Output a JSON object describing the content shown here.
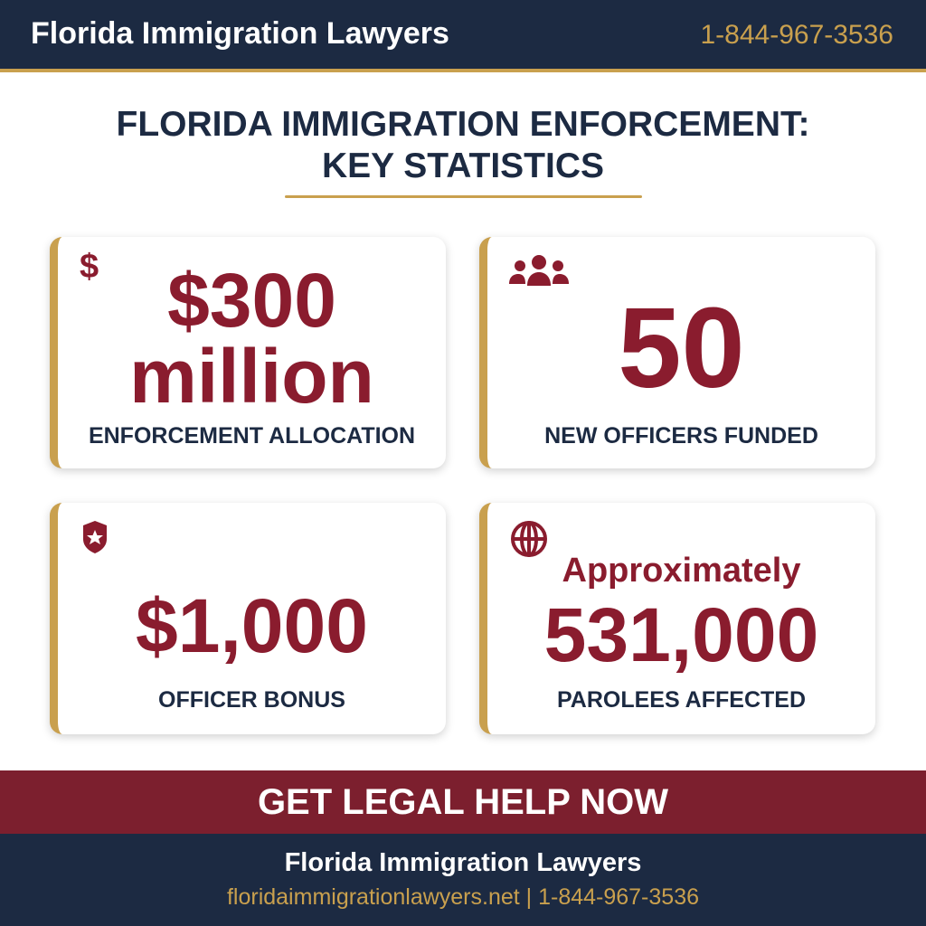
{
  "header": {
    "title": "Florida Immigration Lawyers",
    "phone": "1-844-967-3536"
  },
  "heading": {
    "lines": [
      "FLORIDA IMMIGRATION ENFORCEMENT:",
      "KEY STATISTICS"
    ]
  },
  "cards": [
    {
      "icon": "$",
      "value_lines": [
        "$300",
        "million"
      ],
      "label": "ENFORCEMENT ALLOCATION"
    },
    {
      "value_lines": [
        "50"
      ],
      "label": "NEW OFFICERS FUNDED"
    },
    {
      "value_lines": [
        "$1,000"
      ],
      "label": "OFFICER BONUS"
    },
    {
      "value_lines": [
        "Approximately",
        "531,000"
      ],
      "label": "PAROLEES AFFECTED"
    }
  ],
  "cta": "GET LEGAL HELP NOW",
  "footer": {
    "name": "Florida Immigration Lawyers",
    "contact": "floridaimmigrationlawyers.net | 1-844-967-3536"
  }
}
